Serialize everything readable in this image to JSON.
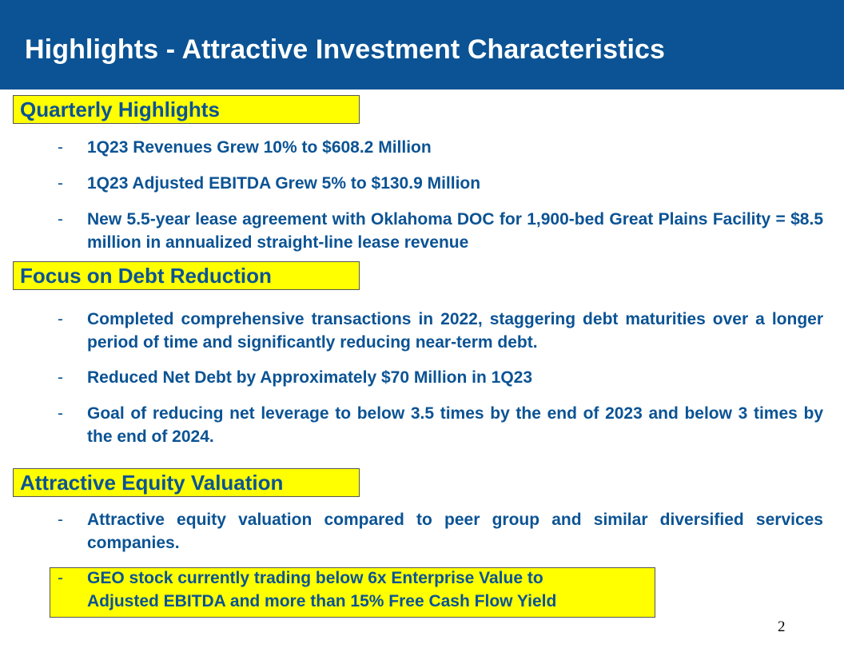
{
  "slide": {
    "title": "Highlights - Attractive Investment Characteristics",
    "page_number": "2"
  },
  "sections": [
    {
      "heading": "Quarterly Highlights",
      "bullets": [
        "1Q23 Revenues Grew 10% to $608.2 Million",
        "1Q23 Adjusted EBITDA Grew 5% to $130.9 Million",
        "New 5.5-year lease agreement with Oklahoma DOC for 1,900-bed Great Plains Facility = $8.5 million in annualized straight-line lease revenue"
      ]
    },
    {
      "heading": "Focus on Debt Reduction",
      "bullets": [
        "Completed comprehensive transactions in 2022, staggering debt maturities over a longer period of time and significantly reducing near-term debt.",
        "Reduced Net Debt by Approximately $70 Million in 1Q23",
        "Goal of reducing net leverage to below 3.5 times by the end of 2023 and below 3 times by the end of 2024."
      ]
    },
    {
      "heading": "Attractive Equity Valuation",
      "bullets": [
        "Attractive equity valuation compared to peer group and similar diversified services companies.",
        "GEO stock currently trading below 6x Enterprise Value to Adjusted EBITDA and more than 15% Free Cash Flow Yield"
      ]
    }
  ],
  "bullet_marker": "-",
  "colors": {
    "header_bg": "#0b5394",
    "text_blue": "#0b5394",
    "highlight_yellow": "#ffff00"
  }
}
